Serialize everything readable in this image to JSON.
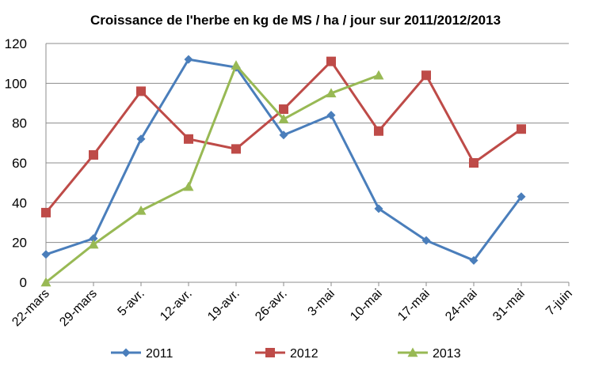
{
  "chart_data": {
    "type": "line",
    "title": "Croissance de l'herbe en kg de MS / ha / jour sur 2011/2012/2013",
    "xlabel": "",
    "ylabel": "",
    "categories": [
      "22-mars",
      "29-mars",
      "5-avr.",
      "12-avr.",
      "19-avr.",
      "26-avr.",
      "3-mai",
      "10-mai",
      "17-mai",
      "24-mai",
      "31-mai",
      "7-juin"
    ],
    "ylim": [
      0,
      120
    ],
    "yticks": [
      "0",
      "20",
      "40",
      "60",
      "80",
      "100",
      "120"
    ],
    "grid": true,
    "legend_position": "bottom",
    "series": [
      {
        "name": "2011",
        "color": "#4a7ebb",
        "marker": "diamond",
        "values": [
          14,
          22,
          72,
          112,
          108,
          74,
          84,
          37,
          21,
          11,
          43,
          null
        ]
      },
      {
        "name": "2012",
        "color": "#be4b48",
        "marker": "square",
        "values": [
          35,
          64,
          96,
          72,
          67,
          87,
          111,
          76,
          104,
          60,
          77,
          null
        ]
      },
      {
        "name": "2013",
        "color": "#98b954",
        "marker": "triangle",
        "values": [
          0,
          19,
          36,
          48,
          109,
          82,
          95,
          104,
          null,
          null,
          null,
          null
        ]
      }
    ]
  }
}
